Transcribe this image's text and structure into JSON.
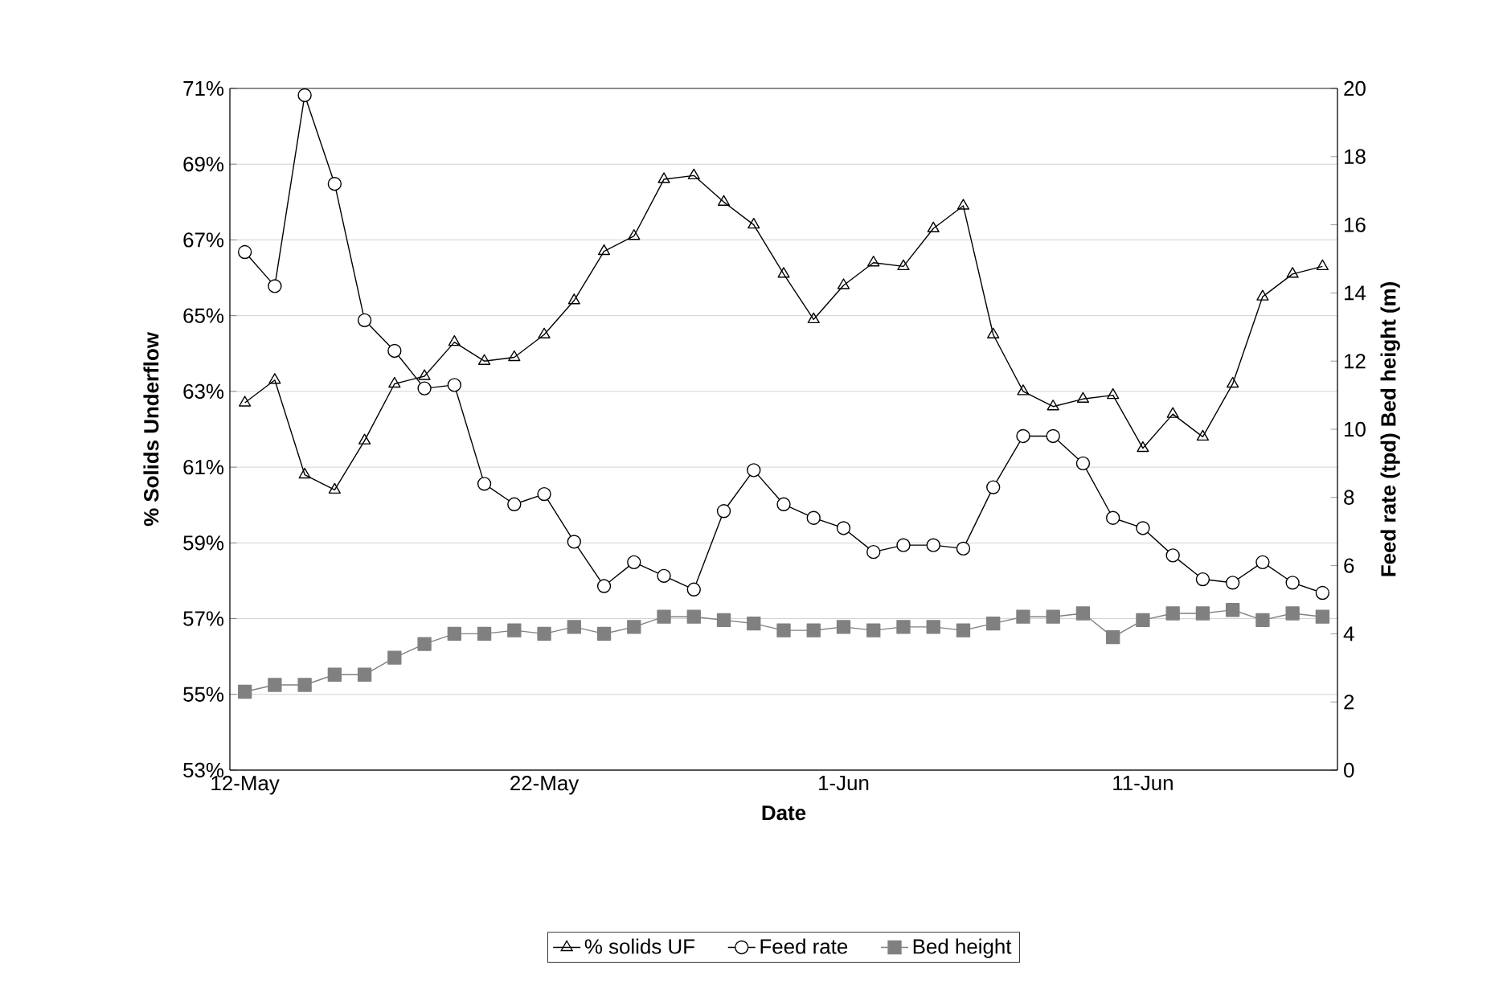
{
  "chart_data": {
    "type": "line",
    "xlabel": "Date",
    "ylabel": "% Solids Underflow",
    "y2label": "Feed rate (tpd)   Bed height (m)",
    "categories": [
      "12-May",
      null,
      null,
      null,
      null,
      null,
      null,
      null,
      null,
      null,
      "22-May",
      null,
      null,
      null,
      null,
      null,
      null,
      null,
      null,
      null,
      "1-Jun",
      null,
      null,
      null,
      null,
      null,
      null,
      null,
      null,
      null,
      "11-Jun",
      null,
      null,
      null,
      null,
      null,
      null
    ],
    "ylim": [
      53,
      71
    ],
    "yticks": [
      {
        "value": 53,
        "label": "53%"
      },
      {
        "value": 55,
        "label": "55%"
      },
      {
        "value": 57,
        "label": "57%"
      },
      {
        "value": 59,
        "label": "59%"
      },
      {
        "value": 61,
        "label": "61%"
      },
      {
        "value": 63,
        "label": "63%"
      },
      {
        "value": 65,
        "label": "65%"
      },
      {
        "value": 67,
        "label": "67%"
      },
      {
        "value": 69,
        "label": "69%"
      },
      {
        "value": 71,
        "label": "71%"
      }
    ],
    "y2lim": [
      0,
      20
    ],
    "y2ticks": [
      0,
      2,
      4,
      6,
      8,
      10,
      12,
      14,
      16,
      18,
      20
    ],
    "grid": "y",
    "legend": "bottom",
    "line_style": "solid",
    "series": [
      {
        "name": "% solids UF",
        "color": "#000000",
        "marker": "triangle",
        "values": [
          62.7,
          63.3,
          60.8,
          60.4,
          61.7,
          63.2,
          63.4,
          64.3,
          63.8,
          63.9,
          64.5,
          65.4,
          66.7,
          67.1,
          68.6,
          68.7,
          68.0,
          67.4,
          66.1,
          64.9,
          65.8,
          66.4,
          66.3,
          67.3,
          67.9,
          64.5,
          63.0,
          62.6,
          62.8,
          62.9,
          61.5,
          62.4,
          61.8,
          63.2,
          65.5,
          66.1,
          66.3
        ]
      },
      {
        "name": "Feed rate",
        "color": "#000000",
        "marker": "circle",
        "axis": "y2",
        "values": [
          15.2,
          14.2,
          19.8,
          17.2,
          13.2,
          12.3,
          11.2,
          11.3,
          8.4,
          7.8,
          8.1,
          6.7,
          5.4,
          6.1,
          5.7,
          5.3,
          7.6,
          8.8,
          7.8,
          7.4,
          7.1,
          6.4,
          6.6,
          6.6,
          6.5,
          8.3,
          9.8,
          9.8,
          9.0,
          7.4,
          7.1,
          6.3,
          5.6,
          5.5,
          6.1,
          5.5,
          5.2
        ]
      },
      {
        "name": "Bed height",
        "color": "#808080",
        "marker": "square",
        "axis": "y2",
        "values": [
          2.3,
          2.5,
          2.5,
          2.8,
          2.8,
          3.3,
          3.7,
          4.0,
          4.0,
          4.1,
          4.0,
          4.2,
          4.0,
          4.2,
          4.5,
          4.5,
          4.4,
          4.3,
          4.1,
          4.1,
          4.2,
          4.1,
          4.2,
          4.2,
          4.1,
          4.3,
          4.5,
          4.5,
          4.6,
          3.9,
          4.4,
          4.6,
          4.6,
          4.7,
          4.4,
          4.6,
          4.5
        ]
      }
    ]
  }
}
